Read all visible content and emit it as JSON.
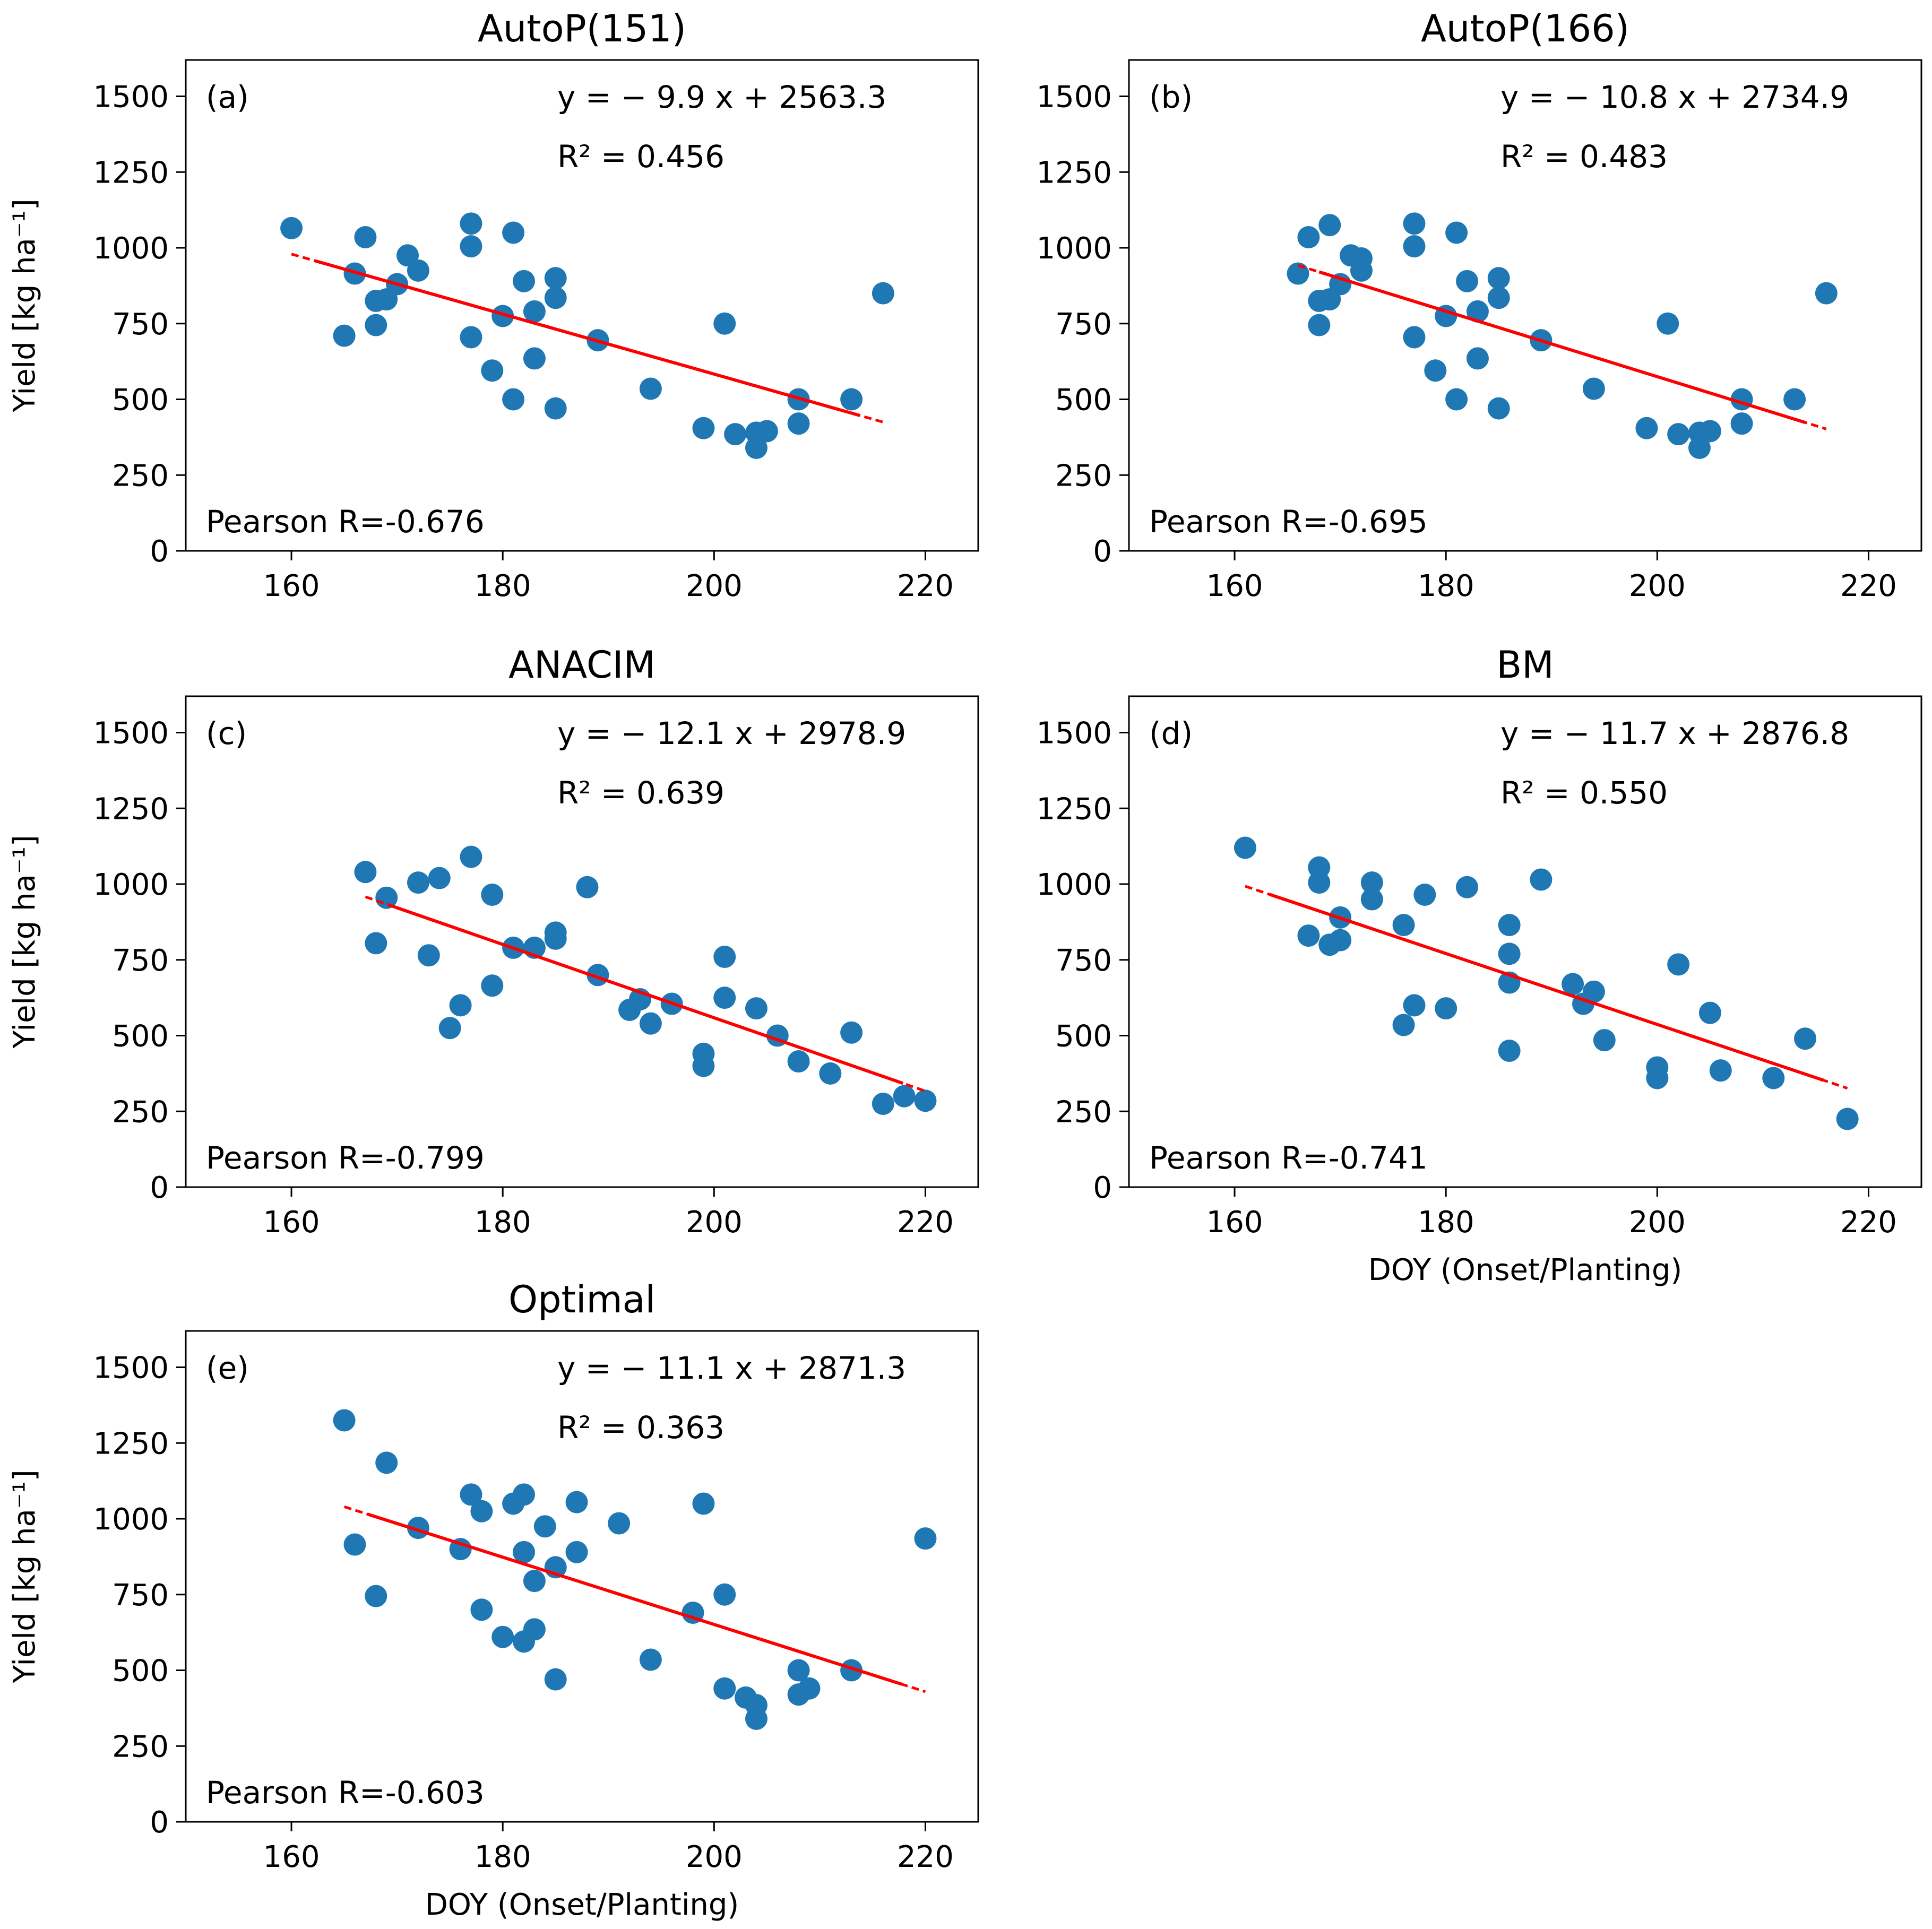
{
  "chart_data": [
    {
      "type": "scatter",
      "title": "AutoP(151)",
      "panel_label": "(a)",
      "equation": "y = − 9.9 x + 2563.3",
      "r2_label": "R² = 0.456",
      "pearson": "Pearson R=-0.676",
      "xlabel": "",
      "ylabel": "Yield [kg ha⁻¹]",
      "xlim": [
        150,
        225
      ],
      "ylim": [
        0,
        1620
      ],
      "xticks": [
        160,
        180,
        200,
        220
      ],
      "yticks": [
        0,
        250,
        500,
        750,
        1000,
        1250,
        1500
      ],
      "fit": {
        "slope": -9.9,
        "intercept": 2563.3,
        "x_range": [
          160,
          216
        ]
      },
      "points": [
        [
          160,
          1065
        ],
        [
          165,
          710
        ],
        [
          166,
          915
        ],
        [
          167,
          1035
        ],
        [
          168,
          825
        ],
        [
          168,
          745
        ],
        [
          169,
          830
        ],
        [
          170,
          880
        ],
        [
          171,
          975
        ],
        [
          172,
          925
        ],
        [
          177,
          1080
        ],
        [
          177,
          1005
        ],
        [
          177,
          705
        ],
        [
          179,
          595
        ],
        [
          180,
          775
        ],
        [
          181,
          1050
        ],
        [
          181,
          500
        ],
        [
          182,
          890
        ],
        [
          183,
          790
        ],
        [
          183,
          635
        ],
        [
          185,
          900
        ],
        [
          185,
          835
        ],
        [
          185,
          470
        ],
        [
          189,
          695
        ],
        [
          194,
          535
        ],
        [
          199,
          405
        ],
        [
          201,
          750
        ],
        [
          202,
          385
        ],
        [
          204,
          390
        ],
        [
          204,
          340
        ],
        [
          205,
          395
        ],
        [
          208,
          500
        ],
        [
          208,
          420
        ],
        [
          213,
          500
        ],
        [
          216,
          850
        ]
      ]
    },
    {
      "type": "scatter",
      "title": "AutoP(166)",
      "panel_label": "(b)",
      "equation": "y = − 10.8 x + 2734.9",
      "r2_label": "R² = 0.483",
      "pearson": "Pearson R=-0.695",
      "xlabel": "",
      "ylabel": "",
      "xlim": [
        150,
        225
      ],
      "ylim": [
        0,
        1620
      ],
      "xticks": [
        160,
        180,
        200,
        220
      ],
      "yticks": [
        0,
        250,
        500,
        750,
        1000,
        1250,
        1500
      ],
      "fit": {
        "slope": -10.8,
        "intercept": 2734.9,
        "x_range": [
          166,
          216
        ]
      },
      "points": [
        [
          166,
          915
        ],
        [
          167,
          1035
        ],
        [
          168,
          825
        ],
        [
          168,
          745
        ],
        [
          169,
          1075
        ],
        [
          169,
          830
        ],
        [
          170,
          880
        ],
        [
          171,
          975
        ],
        [
          172,
          965
        ],
        [
          172,
          925
        ],
        [
          177,
          1080
        ],
        [
          177,
          1005
        ],
        [
          177,
          705
        ],
        [
          179,
          595
        ],
        [
          180,
          775
        ],
        [
          181,
          1050
        ],
        [
          181,
          500
        ],
        [
          182,
          890
        ],
        [
          183,
          790
        ],
        [
          183,
          635
        ],
        [
          185,
          900
        ],
        [
          185,
          835
        ],
        [
          185,
          470
        ],
        [
          189,
          695
        ],
        [
          194,
          535
        ],
        [
          199,
          405
        ],
        [
          201,
          750
        ],
        [
          202,
          385
        ],
        [
          204,
          390
        ],
        [
          204,
          340
        ],
        [
          205,
          395
        ],
        [
          208,
          500
        ],
        [
          208,
          420
        ],
        [
          213,
          500
        ],
        [
          216,
          850
        ]
      ]
    },
    {
      "type": "scatter",
      "title": "ANACIM",
      "panel_label": "(c)",
      "equation": "y = − 12.1 x + 2978.9",
      "r2_label": "R² = 0.639",
      "pearson": "Pearson R=-0.799",
      "xlabel": "",
      "ylabel": "Yield [kg ha⁻¹]",
      "xlim": [
        150,
        225
      ],
      "ylim": [
        0,
        1620
      ],
      "xticks": [
        160,
        180,
        200,
        220
      ],
      "yticks": [
        0,
        250,
        500,
        750,
        1000,
        1250,
        1500
      ],
      "fit": {
        "slope": -12.1,
        "intercept": 2978.9,
        "x_range": [
          167,
          220
        ]
      },
      "points": [
        [
          167,
          1040
        ],
        [
          168,
          805
        ],
        [
          169,
          955
        ],
        [
          172,
          1005
        ],
        [
          173,
          765
        ],
        [
          174,
          1020
        ],
        [
          175,
          525
        ],
        [
          176,
          600
        ],
        [
          177,
          1090
        ],
        [
          179,
          965
        ],
        [
          179,
          665
        ],
        [
          181,
          790
        ],
        [
          183,
          790
        ],
        [
          185,
          840
        ],
        [
          185,
          820
        ],
        [
          188,
          990
        ],
        [
          189,
          700
        ],
        [
          192,
          585
        ],
        [
          193,
          620
        ],
        [
          194,
          540
        ],
        [
          196,
          605
        ],
        [
          199,
          440
        ],
        [
          199,
          400
        ],
        [
          201,
          760
        ],
        [
          201,
          625
        ],
        [
          204,
          590
        ],
        [
          206,
          500
        ],
        [
          208,
          415
        ],
        [
          211,
          375
        ],
        [
          213,
          510
        ],
        [
          216,
          275
        ],
        [
          218,
          300
        ],
        [
          220,
          285
        ]
      ]
    },
    {
      "type": "scatter",
      "title": "BM",
      "panel_label": "(d)",
      "equation": "y = − 11.7 x + 2876.8",
      "r2_label": "R² = 0.550",
      "pearson": "Pearson R=-0.741",
      "xlabel": "DOY (Onset/Planting)",
      "ylabel": "",
      "xlim": [
        150,
        225
      ],
      "ylim": [
        0,
        1620
      ],
      "xticks": [
        160,
        180,
        200,
        220
      ],
      "yticks": [
        0,
        250,
        500,
        750,
        1000,
        1250,
        1500
      ],
      "fit": {
        "slope": -11.7,
        "intercept": 2876.8,
        "x_range": [
          161,
          218
        ]
      },
      "points": [
        [
          161,
          1120
        ],
        [
          167,
          830
        ],
        [
          168,
          1055
        ],
        [
          168,
          1005
        ],
        [
          169,
          800
        ],
        [
          170,
          890
        ],
        [
          170,
          815
        ],
        [
          173,
          1005
        ],
        [
          173,
          950
        ],
        [
          176,
          865
        ],
        [
          176,
          535
        ],
        [
          177,
          600
        ],
        [
          178,
          965
        ],
        [
          180,
          590
        ],
        [
          182,
          990
        ],
        [
          186,
          865
        ],
        [
          186,
          770
        ],
        [
          186,
          675
        ],
        [
          186,
          450
        ],
        [
          189,
          1015
        ],
        [
          192,
          670
        ],
        [
          193,
          605
        ],
        [
          194,
          645
        ],
        [
          195,
          485
        ],
        [
          200,
          395
        ],
        [
          200,
          360
        ],
        [
          202,
          735
        ],
        [
          205,
          575
        ],
        [
          206,
          385
        ],
        [
          211,
          360
        ],
        [
          214,
          490
        ],
        [
          218,
          225
        ]
      ]
    },
    {
      "type": "scatter",
      "title": "Optimal",
      "panel_label": "(e)",
      "equation": "y = − 11.1 x + 2871.3",
      "r2_label": "R² = 0.363",
      "pearson": "Pearson R=-0.603",
      "xlabel": "DOY (Onset/Planting)",
      "ylabel": "Yield [kg ha⁻¹]",
      "xlim": [
        150,
        225
      ],
      "ylim": [
        0,
        1620
      ],
      "xticks": [
        160,
        180,
        200,
        220
      ],
      "yticks": [
        0,
        250,
        500,
        750,
        1000,
        1250,
        1500
      ],
      "fit": {
        "slope": -11.1,
        "intercept": 2871.3,
        "x_range": [
          165,
          220
        ]
      },
      "points": [
        [
          165,
          1325
        ],
        [
          166,
          915
        ],
        [
          168,
          745
        ],
        [
          169,
          1185
        ],
        [
          172,
          970
        ],
        [
          176,
          900
        ],
        [
          177,
          1080
        ],
        [
          178,
          1025
        ],
        [
          178,
          700
        ],
        [
          180,
          610
        ],
        [
          181,
          1050
        ],
        [
          182,
          1080
        ],
        [
          182,
          890
        ],
        [
          182,
          595
        ],
        [
          183,
          795
        ],
        [
          183,
          635
        ],
        [
          184,
          975
        ],
        [
          185,
          840
        ],
        [
          185,
          470
        ],
        [
          187,
          1055
        ],
        [
          187,
          890
        ],
        [
          191,
          985
        ],
        [
          194,
          535
        ],
        [
          198,
          690
        ],
        [
          199,
          1050
        ],
        [
          201,
          750
        ],
        [
          201,
          440
        ],
        [
          203,
          410
        ],
        [
          204,
          385
        ],
        [
          204,
          340
        ],
        [
          208,
          500
        ],
        [
          208,
          420
        ],
        [
          209,
          440
        ],
        [
          213,
          500
        ],
        [
          220,
          935
        ]
      ]
    }
  ]
}
